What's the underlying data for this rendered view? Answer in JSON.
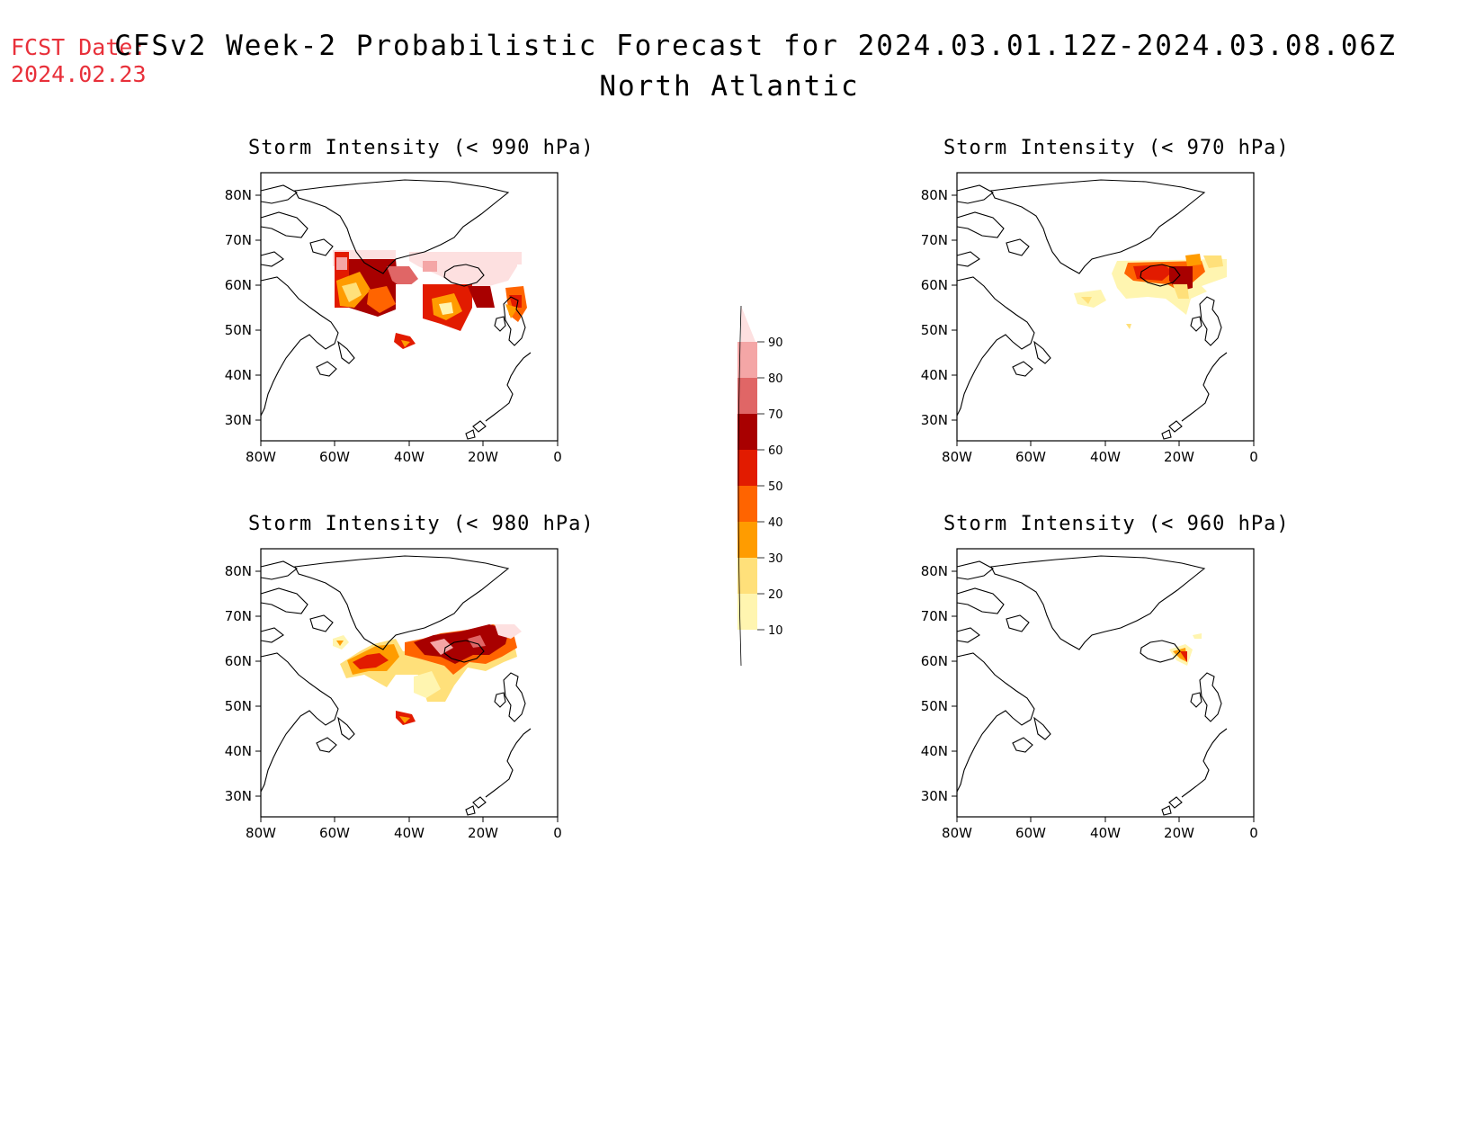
{
  "fcst": {
    "label": "FCST Date:",
    "date": "2024.02.23"
  },
  "title": {
    "main": "CFSv2 Week-2 Probabilistic Forecast for 2024.03.01.12Z-2024.03.08.06Z",
    "region": "North Atlantic"
  },
  "axes": {
    "lat_labels": [
      "80N",
      "70N",
      "60N",
      "50N",
      "40N",
      "30N"
    ],
    "lon_labels": [
      "80W",
      "60W",
      "40W",
      "20W",
      "0"
    ]
  },
  "colorbar": {
    "labels": [
      "90",
      "80",
      "70",
      "60",
      "50",
      "40",
      "30",
      "20",
      "10"
    ],
    "colors": [
      "#fde0e0",
      "#f4a6a6",
      "#e06666",
      "#a80000",
      "#e21b00",
      "#ff6400",
      "#ff9c00",
      "#ffe07a",
      "#fff5b0"
    ]
  },
  "panels": [
    {
      "id": "p990",
      "title": "Storm Intensity (< 990 hPa)"
    },
    {
      "id": "p970",
      "title": "Storm Intensity (< 970 hPa)"
    },
    {
      "id": "p980",
      "title": "Storm Intensity (< 980 hPa)"
    },
    {
      "id": "p960",
      "title": "Storm Intensity (< 960 hPa)"
    }
  ]
}
